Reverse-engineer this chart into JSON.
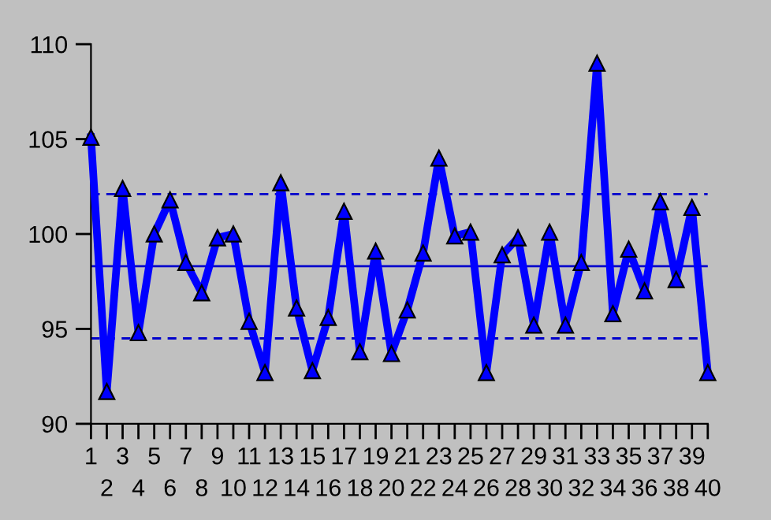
{
  "chart_data": {
    "type": "line",
    "categories": [
      "1",
      "2",
      "3",
      "4",
      "5",
      "6",
      "7",
      "8",
      "9",
      "10",
      "11",
      "12",
      "13",
      "14",
      "15",
      "16",
      "17",
      "18",
      "19",
      "20",
      "21",
      "22",
      "23",
      "24",
      "25",
      "26",
      "27",
      "28",
      "29",
      "30",
      "31",
      "32",
      "33",
      "34",
      "35",
      "36",
      "37",
      "38",
      "39",
      "40"
    ],
    "series": [
      {
        "color": "#0000ff",
        "values": [
          105.1,
          91.7,
          102.4,
          94.8,
          100.0,
          101.8,
          98.5,
          96.9,
          99.8,
          100.0,
          95.4,
          92.7,
          102.7,
          96.1,
          92.8,
          95.6,
          101.2,
          93.8,
          99.1,
          93.7,
          96.0,
          99.0,
          104.0,
          99.9,
          100.1,
          92.7,
          98.9,
          99.8,
          95.2,
          100.1,
          95.2,
          98.5,
          109.0,
          95.8,
          99.2,
          97.0,
          101.7,
          97.6,
          101.4,
          92.7
        ]
      }
    ],
    "ylim": [
      90,
      110
    ],
    "yticks": [
      90,
      95,
      100,
      105,
      110
    ],
    "marker": "triangle",
    "line_style": "solid",
    "grid": false,
    "ref_lines": [
      {
        "axis": "y",
        "value": 102.1,
        "color": "#0000cc",
        "line_style": "dashed"
      },
      {
        "axis": "y",
        "value": 98.3,
        "color": "#0000cc",
        "line_style": "solid"
      },
      {
        "axis": "y",
        "value": 94.5,
        "color": "#0000cc",
        "line_style": "dashed"
      }
    ]
  }
}
